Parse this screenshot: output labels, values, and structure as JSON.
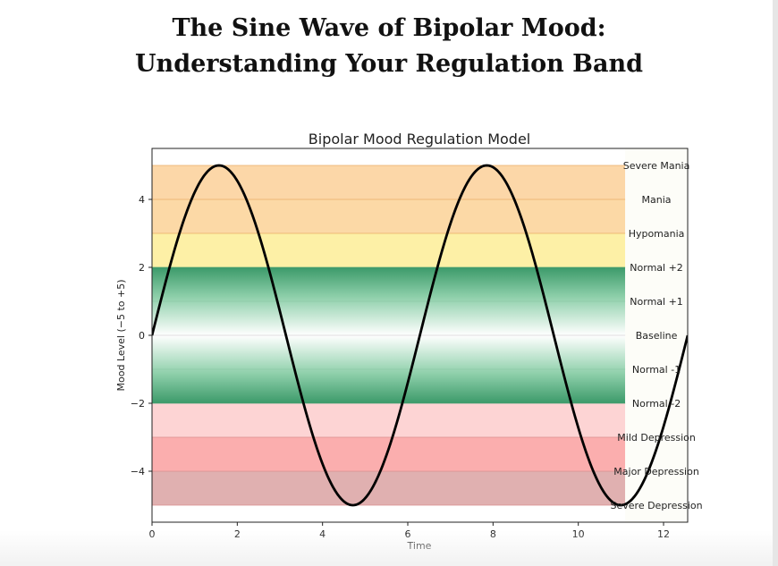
{
  "page": {
    "title_line1": "The Sine Wave of Bipolar Mood:",
    "title_line2": "Understanding Your Regulation Band"
  },
  "chart_data": {
    "type": "line",
    "title": "Bipolar Mood Regulation Model",
    "xlabel": "Time",
    "ylabel": "Mood Level (−5 to +5)",
    "xlim": [
      0,
      12.566
    ],
    "ylim": [
      -5.5,
      5.5
    ],
    "x_ticks": [
      0,
      2,
      4,
      6,
      8,
      10,
      12
    ],
    "x_tick_labels": [
      "0",
      "2",
      "4",
      "6",
      "8",
      "10",
      "12"
    ],
    "y_ticks": [
      -4,
      -2,
      0,
      2,
      4
    ],
    "y_tick_labels": [
      "−4",
      "−2",
      "0",
      "2",
      "4"
    ],
    "series": [
      {
        "function": "5*sin(x)",
        "x_range": [
          0,
          12.566
        ],
        "color": "#000000"
      }
    ],
    "bands": [
      {
        "from": 4,
        "to": 5,
        "color": "#fcd7a8"
      },
      {
        "from": 3,
        "to": 4,
        "color": "#fcd9a6"
      },
      {
        "from": 2,
        "to": 3,
        "color": "#fdf0a6"
      },
      {
        "from": -2,
        "to": 2,
        "color": "gradient-green",
        "edge_color": "#3c9a6a",
        "center_color": "#ffffff"
      },
      {
        "from": -3,
        "to": -2,
        "color": "#fdd4d4"
      },
      {
        "from": -4,
        "to": -3,
        "color": "#fbaeae"
      },
      {
        "from": -5,
        "to": -4,
        "color": "#e0b0b0"
      }
    ],
    "band_lines": [
      5,
      4,
      3,
      2,
      1,
      0,
      -1,
      -2,
      -3,
      -4,
      -5
    ],
    "band_labels_x": 11.1,
    "level_labels": [
      {
        "y": 5,
        "label": "Severe Mania"
      },
      {
        "y": 4,
        "label": "Mania"
      },
      {
        "y": 3,
        "label": "Hypomania"
      },
      {
        "y": 2,
        "label": "Normal +2"
      },
      {
        "y": 1,
        "label": "Normal +1"
      },
      {
        "y": 0,
        "label": "Baseline"
      },
      {
        "y": -1,
        "label": "Normal -1"
      },
      {
        "y": -2,
        "label": "Normal -2"
      },
      {
        "y": -3,
        "label": "Mild Depression"
      },
      {
        "y": -4,
        "label": "Major Depression"
      },
      {
        "y": -5,
        "label": "Severe Depression"
      }
    ]
  }
}
